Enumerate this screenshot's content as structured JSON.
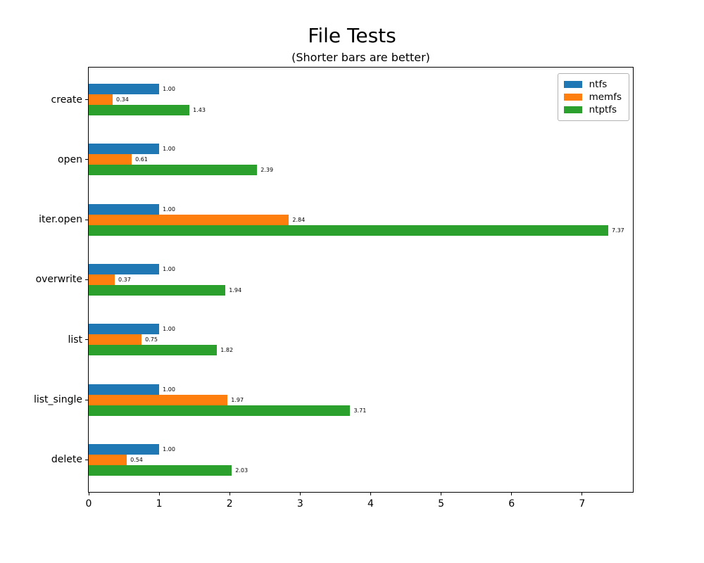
{
  "chart_data": {
    "type": "bar",
    "orientation": "horizontal",
    "title": "File Tests",
    "subtitle": "(Shorter bars are better)",
    "categories": [
      "create",
      "open",
      "iter.open",
      "overwrite",
      "list",
      "list_single",
      "delete"
    ],
    "series": [
      {
        "name": "ntfs",
        "color": "#1f77b4",
        "values": [
          1.0,
          1.0,
          1.0,
          1.0,
          1.0,
          1.0,
          1.0
        ]
      },
      {
        "name": "memfs",
        "color": "#ff7f0e",
        "values": [
          0.34,
          0.61,
          2.84,
          0.37,
          0.75,
          1.97,
          0.54
        ]
      },
      {
        "name": "ntptfs",
        "color": "#2ca02c",
        "values": [
          1.43,
          2.39,
          7.37,
          1.94,
          1.82,
          3.71,
          2.03
        ]
      }
    ],
    "value_label_format": "2dp",
    "xlabel": "",
    "ylabel": "",
    "xticks": [
      0,
      1,
      2,
      3,
      4,
      5,
      6,
      7
    ],
    "xlim": [
      0,
      7.74
    ],
    "grid": false,
    "legend_position": "upper right",
    "axis_color": "#000000",
    "background_color": "#ffffff"
  }
}
